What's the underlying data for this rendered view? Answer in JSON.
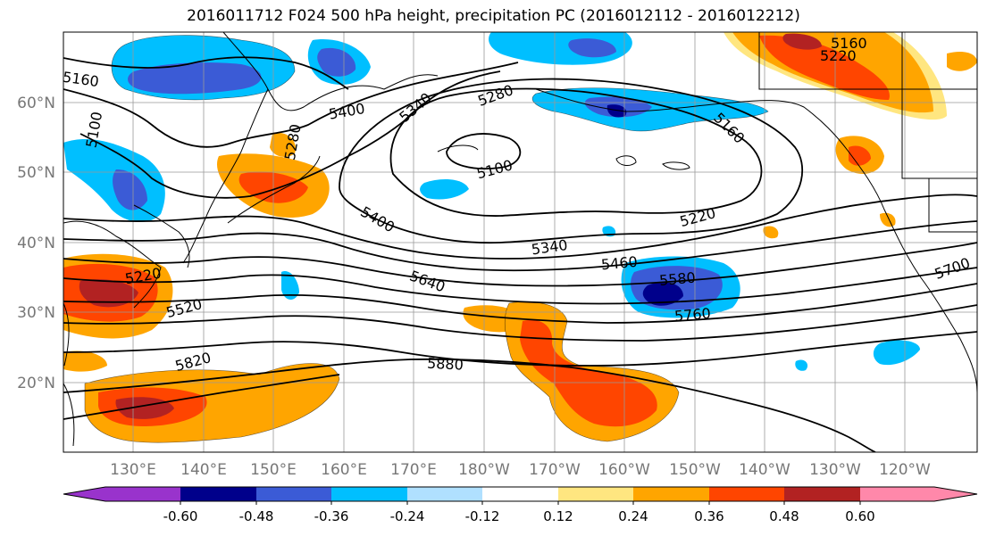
{
  "title": "2016011712 F024 500 hPa height, precipitation PC (2016012112 - 2016012212)",
  "lat_labels": [
    "60°N",
    "50°N",
    "40°N",
    "30°N",
    "20°N"
  ],
  "lon_labels": [
    "130°E",
    "140°E",
    "150°E",
    "160°E",
    "170°E",
    "180°W",
    "170°W",
    "160°W",
    "150°W",
    "140°W",
    "130°W",
    "120°W"
  ],
  "contour_labels": [
    "5160",
    "5100",
    "5280",
    "5400",
    "5340",
    "5280",
    "5100",
    "5160",
    "5220",
    "5160",
    "5220",
    "5400",
    "5340",
    "5460",
    "5580",
    "5700",
    "5640",
    "5760",
    "5520",
    "5220",
    "5820",
    "5880"
  ],
  "colorbar": {
    "ticks": [
      "-0.60",
      "-0.48",
      "-0.36",
      "-0.24",
      "-0.12",
      "0.12",
      "0.24",
      "0.36",
      "0.48",
      "0.60"
    ],
    "colors": [
      "#9933cc",
      "#00008b",
      "#3b5bd6",
      "#00bfff",
      "#b0e0ff",
      "#ffffff",
      "#ffe680",
      "#ffa500",
      "#ff4500",
      "#b22222",
      "#ff88aa"
    ]
  }
}
